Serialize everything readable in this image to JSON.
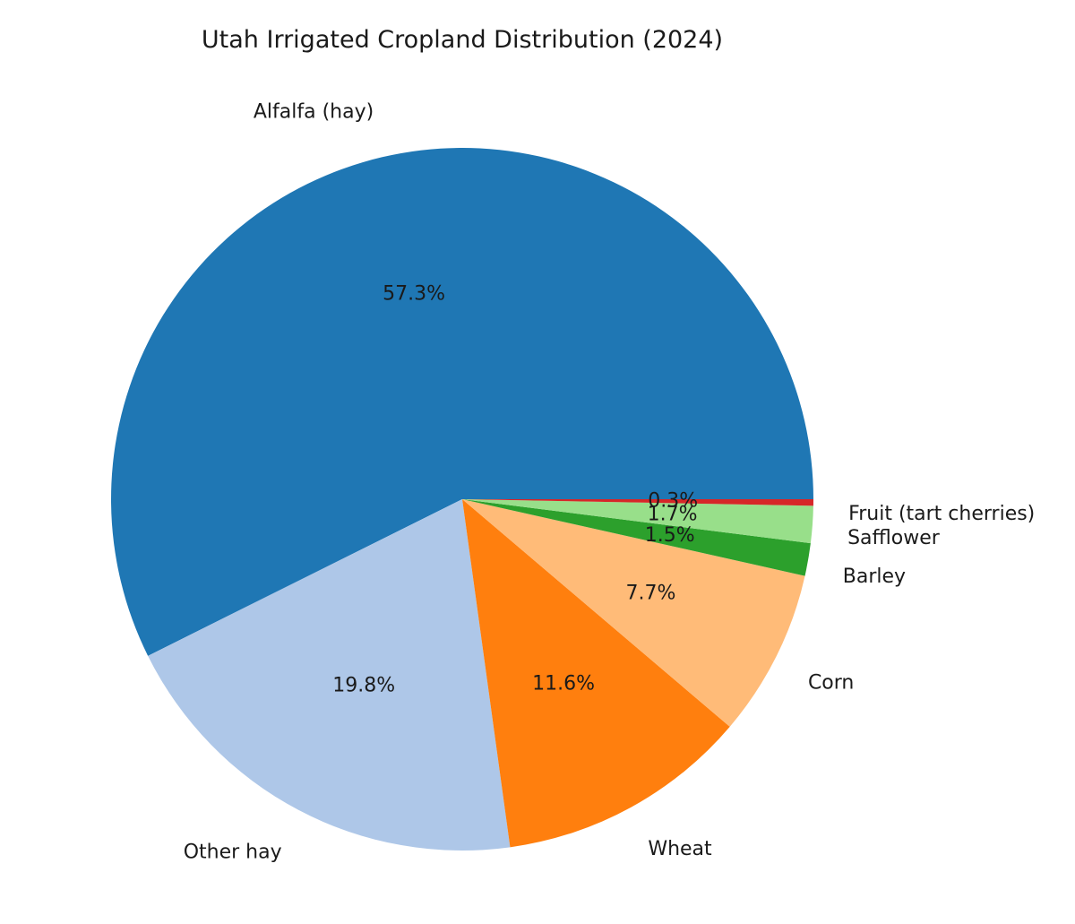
{
  "chart_data": {
    "type": "pie",
    "title": "Utah Irrigated Cropland Distribution (2024)",
    "categories": [
      "Alfalfa (hay)",
      "Other hay",
      "Wheat",
      "Corn",
      "Barley",
      "Safflower",
      "Fruit (tart cherries)"
    ],
    "values": [
      57.3,
      19.8,
      11.6,
      7.7,
      1.5,
      1.7,
      0.3
    ],
    "pct_labels": [
      "57.3%",
      "19.8%",
      "11.6%",
      "7.7%",
      "1.5%",
      "1.7%",
      "0.3%"
    ],
    "colors": [
      "#1f77b4",
      "#aec7e8",
      "#ff7f0e",
      "#ffbb78",
      "#2ca02c",
      "#98df8a",
      "#d62728"
    ],
    "start_angle_deg": 0,
    "direction": "counterclockwise"
  }
}
